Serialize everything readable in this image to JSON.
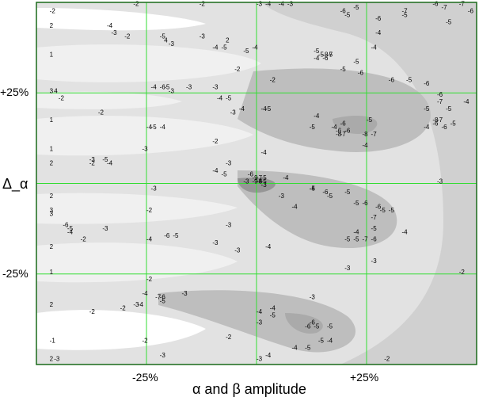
{
  "chart_data": {
    "type": "heatmap",
    "subtype": "filled contour plot",
    "xlabel": "α and β amplitude",
    "ylabel": "Δ_α",
    "x_ticks": [
      {
        "value": -25,
        "label": "-25%"
      },
      {
        "value": 25,
        "label": "+25%"
      }
    ],
    "y_ticks": [
      {
        "value": 25,
        "label": "+25%"
      },
      {
        "value": -25,
        "label": "-25%"
      }
    ],
    "xlim": [
      -50,
      50
    ],
    "ylim": [
      -50,
      50
    ],
    "grid": true,
    "grid_color": "#33dd33",
    "border_color": "#1a6a1a",
    "fill_colors": [
      "#ffffff",
      "#f0f0f0",
      "#e2e2e2",
      "#d0d0d0",
      "#bebebe",
      "#aaaaaa",
      "#969696",
      "#828282"
    ],
    "contour_labels": [
      {
        "x": -47,
        "y": 47,
        "v": "-2"
      },
      {
        "x": -47,
        "y": 43,
        "v": "2"
      },
      {
        "x": -47,
        "y": 35,
        "v": "1"
      },
      {
        "x": -47,
        "y": 25,
        "v": "3"
      },
      {
        "x": -46,
        "y": 25,
        "v": "4"
      },
      {
        "x": -45,
        "y": 23,
        "v": "-2"
      },
      {
        "x": -47,
        "y": 17,
        "v": "1"
      },
      {
        "x": -47,
        "y": 9,
        "v": "1"
      },
      {
        "x": -47,
        "y": 5,
        "v": "2"
      },
      {
        "x": -47,
        "y": -4,
        "v": "2"
      },
      {
        "x": -47,
        "y": -8,
        "v": "3"
      },
      {
        "x": -47,
        "y": -18,
        "v": "2"
      },
      {
        "x": -47,
        "y": -25,
        "v": "1"
      },
      {
        "x": -47,
        "y": -34,
        "v": "2"
      },
      {
        "x": -47,
        "y": -44,
        "v": "-1"
      },
      {
        "x": -47,
        "y": -49,
        "v": "2"
      },
      {
        "x": -34,
        "y": 43,
        "v": "-4"
      },
      {
        "x": -33,
        "y": 41,
        "v": "-3"
      },
      {
        "x": -30,
        "y": 40,
        "v": "-2"
      },
      {
        "x": -22,
        "y": 40,
        "v": "-5"
      },
      {
        "x": -21,
        "y": 39,
        "v": "4"
      },
      {
        "x": -20,
        "y": 38,
        "v": "-3"
      },
      {
        "x": -13,
        "y": 40,
        "v": "-3"
      },
      {
        "x": -7,
        "y": 39,
        "v": "2"
      },
      {
        "x": -10,
        "y": 37,
        "v": "-4"
      },
      {
        "x": -8,
        "y": 37,
        "v": "-5"
      },
      {
        "x": -3,
        "y": 36,
        "v": "-5"
      },
      {
        "x": -1,
        "y": 37,
        "v": "-4"
      },
      {
        "x": -5,
        "y": 31,
        "v": "-2"
      },
      {
        "x": -24,
        "y": 26,
        "v": "-4"
      },
      {
        "x": -22,
        "y": 26,
        "v": "-6"
      },
      {
        "x": -21,
        "y": 26,
        "v": "-5"
      },
      {
        "x": -20,
        "y": 25,
        "v": "-3"
      },
      {
        "x": -16,
        "y": 26,
        "v": "-3"
      },
      {
        "x": -10,
        "y": 26,
        "v": "-3"
      },
      {
        "x": -9,
        "y": 23,
        "v": "-4"
      },
      {
        "x": -7,
        "y": 23,
        "v": "-5"
      },
      {
        "x": -6,
        "y": 19,
        "v": "-3"
      },
      {
        "x": 3,
        "y": 28,
        "v": "-2"
      },
      {
        "x": 1,
        "y": 20,
        "v": "-4"
      },
      {
        "x": 2,
        "y": 20,
        "v": "-5"
      },
      {
        "x": -4,
        "y": 20,
        "v": "-4"
      },
      {
        "x": -10,
        "y": 11,
        "v": "-2"
      },
      {
        "x": -36,
        "y": 19,
        "v": "-2"
      },
      {
        "x": -25,
        "y": 15,
        "v": "-4"
      },
      {
        "x": -24,
        "y": 15,
        "v": "-5"
      },
      {
        "x": -22,
        "y": 15,
        "v": "-4"
      },
      {
        "x": -26,
        "y": 9,
        "v": "-3"
      },
      {
        "x": -38,
        "y": 5,
        "v": "-2"
      },
      {
        "x": -38,
        "y": 6,
        "v": "-3"
      },
      {
        "x": -35,
        "y": 6,
        "v": "-5"
      },
      {
        "x": -34,
        "y": 5,
        "v": "-4"
      },
      {
        "x": -10,
        "y": 3,
        "v": "-4"
      },
      {
        "x": -8,
        "y": 2,
        "v": "-5"
      },
      {
        "x": -7,
        "y": 5,
        "v": "-3"
      },
      {
        "x": -3,
        "y": 0,
        "v": "-3"
      },
      {
        "x": 1,
        "y": 8,
        "v": "-4"
      },
      {
        "x": 0,
        "y": 0,
        "v": "-4"
      },
      {
        "x": 1,
        "y": 0,
        "v": "-5"
      },
      {
        "x": 6,
        "y": 1,
        "v": "-4"
      },
      {
        "x": 13,
        "y": 18,
        "v": "-4"
      },
      {
        "x": 12,
        "y": 15,
        "v": "-5"
      },
      {
        "x": 17,
        "y": 15,
        "v": "-4"
      },
      {
        "x": 18,
        "y": 14,
        "v": "-6"
      },
      {
        "x": 18,
        "y": 13,
        "v": "-8"
      },
      {
        "x": 19,
        "y": 13,
        "v": "-7"
      },
      {
        "x": 19,
        "y": 16,
        "v": "-6"
      },
      {
        "x": 20,
        "y": 14,
        "v": "-6"
      },
      {
        "x": 24,
        "y": 13,
        "v": "-8"
      },
      {
        "x": 26,
        "y": 13,
        "v": "-7"
      },
      {
        "x": 25,
        "y": 17,
        "v": "-5"
      },
      {
        "x": 24,
        "y": 10,
        "v": "-4"
      },
      {
        "x": 16,
        "y": 35,
        "v": "-5"
      },
      {
        "x": 14,
        "y": 35,
        "v": "-5"
      },
      {
        "x": 15,
        "y": 35,
        "v": "-8"
      },
      {
        "x": 16,
        "y": 35,
        "v": "-7"
      },
      {
        "x": 15,
        "y": 34,
        "v": "-6"
      },
      {
        "x": 13,
        "y": 34,
        "v": "-4"
      },
      {
        "x": 13,
        "y": 36,
        "v": "-5"
      },
      {
        "x": 19,
        "y": 31,
        "v": "-5"
      },
      {
        "x": 22,
        "y": 33,
        "v": "-5"
      },
      {
        "x": 23,
        "y": 30,
        "v": "-6"
      },
      {
        "x": 30,
        "y": 28,
        "v": "-6"
      },
      {
        "x": 34,
        "y": 28,
        "v": "-5"
      },
      {
        "x": 38,
        "y": 27,
        "v": "-6"
      },
      {
        "x": 41,
        "y": 24,
        "v": "-6"
      },
      {
        "x": 41,
        "y": 22,
        "v": "-7"
      },
      {
        "x": 43,
        "y": 20,
        "v": "-5"
      },
      {
        "x": 40,
        "y": 17,
        "v": "-8"
      },
      {
        "x": 41,
        "y": 17,
        "v": "-7"
      },
      {
        "x": 40,
        "y": 16,
        "v": "-6"
      },
      {
        "x": 42,
        "y": 15,
        "v": "-6"
      },
      {
        "x": 44,
        "y": 16,
        "v": "-5"
      },
      {
        "x": 38,
        "y": 20,
        "v": "-5"
      },
      {
        "x": 38,
        "y": 15,
        "v": "-4"
      },
      {
        "x": 47,
        "y": 22,
        "v": "-4"
      },
      {
        "x": 26,
        "y": 37,
        "v": "-4"
      },
      {
        "x": 22,
        "y": 48,
        "v": "-5"
      },
      {
        "x": 19,
        "y": 47,
        "v": "-6"
      },
      {
        "x": 20,
        "y": 46,
        "v": "-5"
      },
      {
        "x": 27,
        "y": 45,
        "v": "-6"
      },
      {
        "x": 27,
        "y": 41,
        "v": "-4"
      },
      {
        "x": 33,
        "y": 47,
        "v": "-7"
      },
      {
        "x": 33,
        "y": 46,
        "v": "-5"
      },
      {
        "x": 40,
        "y": 49,
        "v": "-6"
      },
      {
        "x": 42,
        "y": 48,
        "v": "-7"
      },
      {
        "x": 46,
        "y": 49,
        "v": "-7"
      },
      {
        "x": 48,
        "y": 47,
        "v": "-6"
      },
      {
        "x": 43,
        "y": 44,
        "v": "-5"
      },
      {
        "x": 2,
        "y": 49,
        "v": "-4"
      },
      {
        "x": 5,
        "y": 49,
        "v": "-4"
      },
      {
        "x": 7,
        "y": 49,
        "v": "-3"
      },
      {
        "x": -28,
        "y": 49,
        "v": "-2"
      },
      {
        "x": 0,
        "y": 49,
        "v": "-3"
      },
      {
        "x": -13,
        "y": 49,
        "v": "-2"
      },
      {
        "x": -2,
        "y": 2,
        "v": "-6"
      },
      {
        "x": -1,
        "y": 1,
        "v": "-9"
      },
      {
        "x": 0,
        "y": 1,
        "v": "-7"
      },
      {
        "x": 1,
        "y": 1,
        "v": "-5"
      },
      {
        "x": -1,
        "y": 0,
        "v": "-9"
      },
      {
        "x": 0,
        "y": 0,
        "v": "-8"
      },
      {
        "x": 1,
        "y": -1,
        "v": "-3"
      },
      {
        "x": 12,
        "y": -2,
        "v": "-4"
      },
      {
        "x": 12,
        "y": -2,
        "v": "-5"
      },
      {
        "x": 15,
        "y": -3,
        "v": "-6"
      },
      {
        "x": 16,
        "y": -4,
        "v": "-5"
      },
      {
        "x": 20,
        "y": -3,
        "v": "-5"
      },
      {
        "x": 22,
        "y": -6,
        "v": "-5"
      },
      {
        "x": 24,
        "y": -6,
        "v": "-6"
      },
      {
        "x": 27,
        "y": -7,
        "v": "-6"
      },
      {
        "x": 28,
        "y": -8,
        "v": "-5"
      },
      {
        "x": 30,
        "y": -8,
        "v": "-5"
      },
      {
        "x": 26,
        "y": -10,
        "v": "-7"
      },
      {
        "x": 22,
        "y": -14,
        "v": "-4"
      },
      {
        "x": 26,
        "y": -13,
        "v": "-5"
      },
      {
        "x": 22,
        "y": -16,
        "v": "-5"
      },
      {
        "x": 24,
        "y": -16,
        "v": "-7"
      },
      {
        "x": 26,
        "y": -16,
        "v": "-6"
      },
      {
        "x": 20,
        "y": -16,
        "v": "-5"
      },
      {
        "x": 33,
        "y": -14,
        "v": "-4"
      },
      {
        "x": 26,
        "y": -22,
        "v": "-3"
      },
      {
        "x": 8,
        "y": -7,
        "v": "-4"
      },
      {
        "x": 5,
        "y": -4,
        "v": "-3"
      },
      {
        "x": -7,
        "y": -12,
        "v": "-3"
      },
      {
        "x": -5,
        "y": -19,
        "v": "-3"
      },
      {
        "x": 2,
        "y": -18,
        "v": "-4"
      },
      {
        "x": -25,
        "y": -8,
        "v": "-2"
      },
      {
        "x": -25,
        "y": -16,
        "v": "-4"
      },
      {
        "x": -21,
        "y": -15,
        "v": "-6"
      },
      {
        "x": -19,
        "y": -15,
        "v": "-5"
      },
      {
        "x": -35,
        "y": -13,
        "v": "-3"
      },
      {
        "x": -44,
        "y": -12,
        "v": "-6"
      },
      {
        "x": -43,
        "y": -13,
        "v": "-5"
      },
      {
        "x": -43,
        "y": -14,
        "v": "-4"
      },
      {
        "x": -40,
        "y": -16,
        "v": "-2"
      },
      {
        "x": -25,
        "y": -27,
        "v": "-2"
      },
      {
        "x": -26,
        "y": -31,
        "v": "-4"
      },
      {
        "x": -23,
        "y": -32,
        "v": "-7"
      },
      {
        "x": -22,
        "y": -32,
        "v": "-6"
      },
      {
        "x": -22,
        "y": -33,
        "v": "-5"
      },
      {
        "x": -17,
        "y": -31,
        "v": "-3"
      },
      {
        "x": -27,
        "y": -34,
        "v": "-4"
      },
      {
        "x": -28,
        "y": -34,
        "v": "-3"
      },
      {
        "x": -31,
        "y": -35,
        "v": "-2"
      },
      {
        "x": -26,
        "y": -44,
        "v": "-2"
      },
      {
        "x": -22,
        "y": -48,
        "v": "-3"
      },
      {
        "x": -7,
        "y": -43,
        "v": "-2"
      },
      {
        "x": 0,
        "y": -36,
        "v": "-4"
      },
      {
        "x": 3,
        "y": -35,
        "v": "-4"
      },
      {
        "x": 3,
        "y": -37,
        "v": "-5"
      },
      {
        "x": 0,
        "y": -39,
        "v": "-3"
      },
      {
        "x": 12,
        "y": -32,
        "v": "-3"
      },
      {
        "x": 11,
        "y": -40,
        "v": "-6"
      },
      {
        "x": 12,
        "y": -39,
        "v": "-6"
      },
      {
        "x": 13,
        "y": -40,
        "v": "-5"
      },
      {
        "x": 16,
        "y": -40,
        "v": "-5"
      },
      {
        "x": 16,
        "y": -44,
        "v": "-4"
      },
      {
        "x": 14,
        "y": -44,
        "v": "-5"
      },
      {
        "x": 11,
        "y": -46,
        "v": "-5"
      },
      {
        "x": 8,
        "y": -46,
        "v": "-4"
      },
      {
        "x": 2,
        "y": -48,
        "v": "-4"
      },
      {
        "x": 0,
        "y": -49,
        "v": "-3"
      },
      {
        "x": 29,
        "y": -49,
        "v": "-2"
      },
      {
        "x": 41,
        "y": 0,
        "v": "-3"
      },
      {
        "x": 46,
        "y": -25,
        "v": "-2"
      },
      {
        "x": 20,
        "y": -24,
        "v": "-3"
      },
      {
        "x": -47,
        "y": -9,
        "v": "3"
      },
      {
        "x": -46,
        "y": -49,
        "v": "-3"
      },
      {
        "x": -24,
        "y": -2,
        "v": "-3"
      },
      {
        "x": -10,
        "y": -17,
        "v": "-3"
      },
      {
        "x": -38,
        "y": -36,
        "v": "-2"
      }
    ]
  }
}
